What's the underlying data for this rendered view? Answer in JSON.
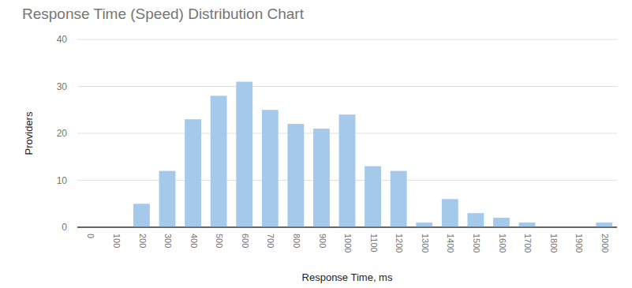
{
  "chart_data": {
    "type": "bar",
    "title": "Response Time (Speed) Distribution Chart",
    "x_label": "Response Time, ms",
    "y_label": "Providers",
    "categories": [
      "0",
      "100",
      "200",
      "300",
      "400",
      "500",
      "600",
      "700",
      "800",
      "900",
      "1000",
      "1100",
      "1200",
      "1300",
      "1400",
      "1500",
      "1600",
      "1700",
      "1800",
      "1900",
      "2000"
    ],
    "values": [
      0,
      0,
      5,
      12,
      23,
      28,
      31,
      25,
      22,
      21,
      24,
      13,
      12,
      1,
      6,
      3,
      2,
      1,
      0,
      0,
      1
    ],
    "color": "#a4c9eb",
    "ylim": [
      0,
      40
    ],
    "yticks": [
      0,
      10,
      20,
      30,
      40
    ],
    "grid": true
  }
}
